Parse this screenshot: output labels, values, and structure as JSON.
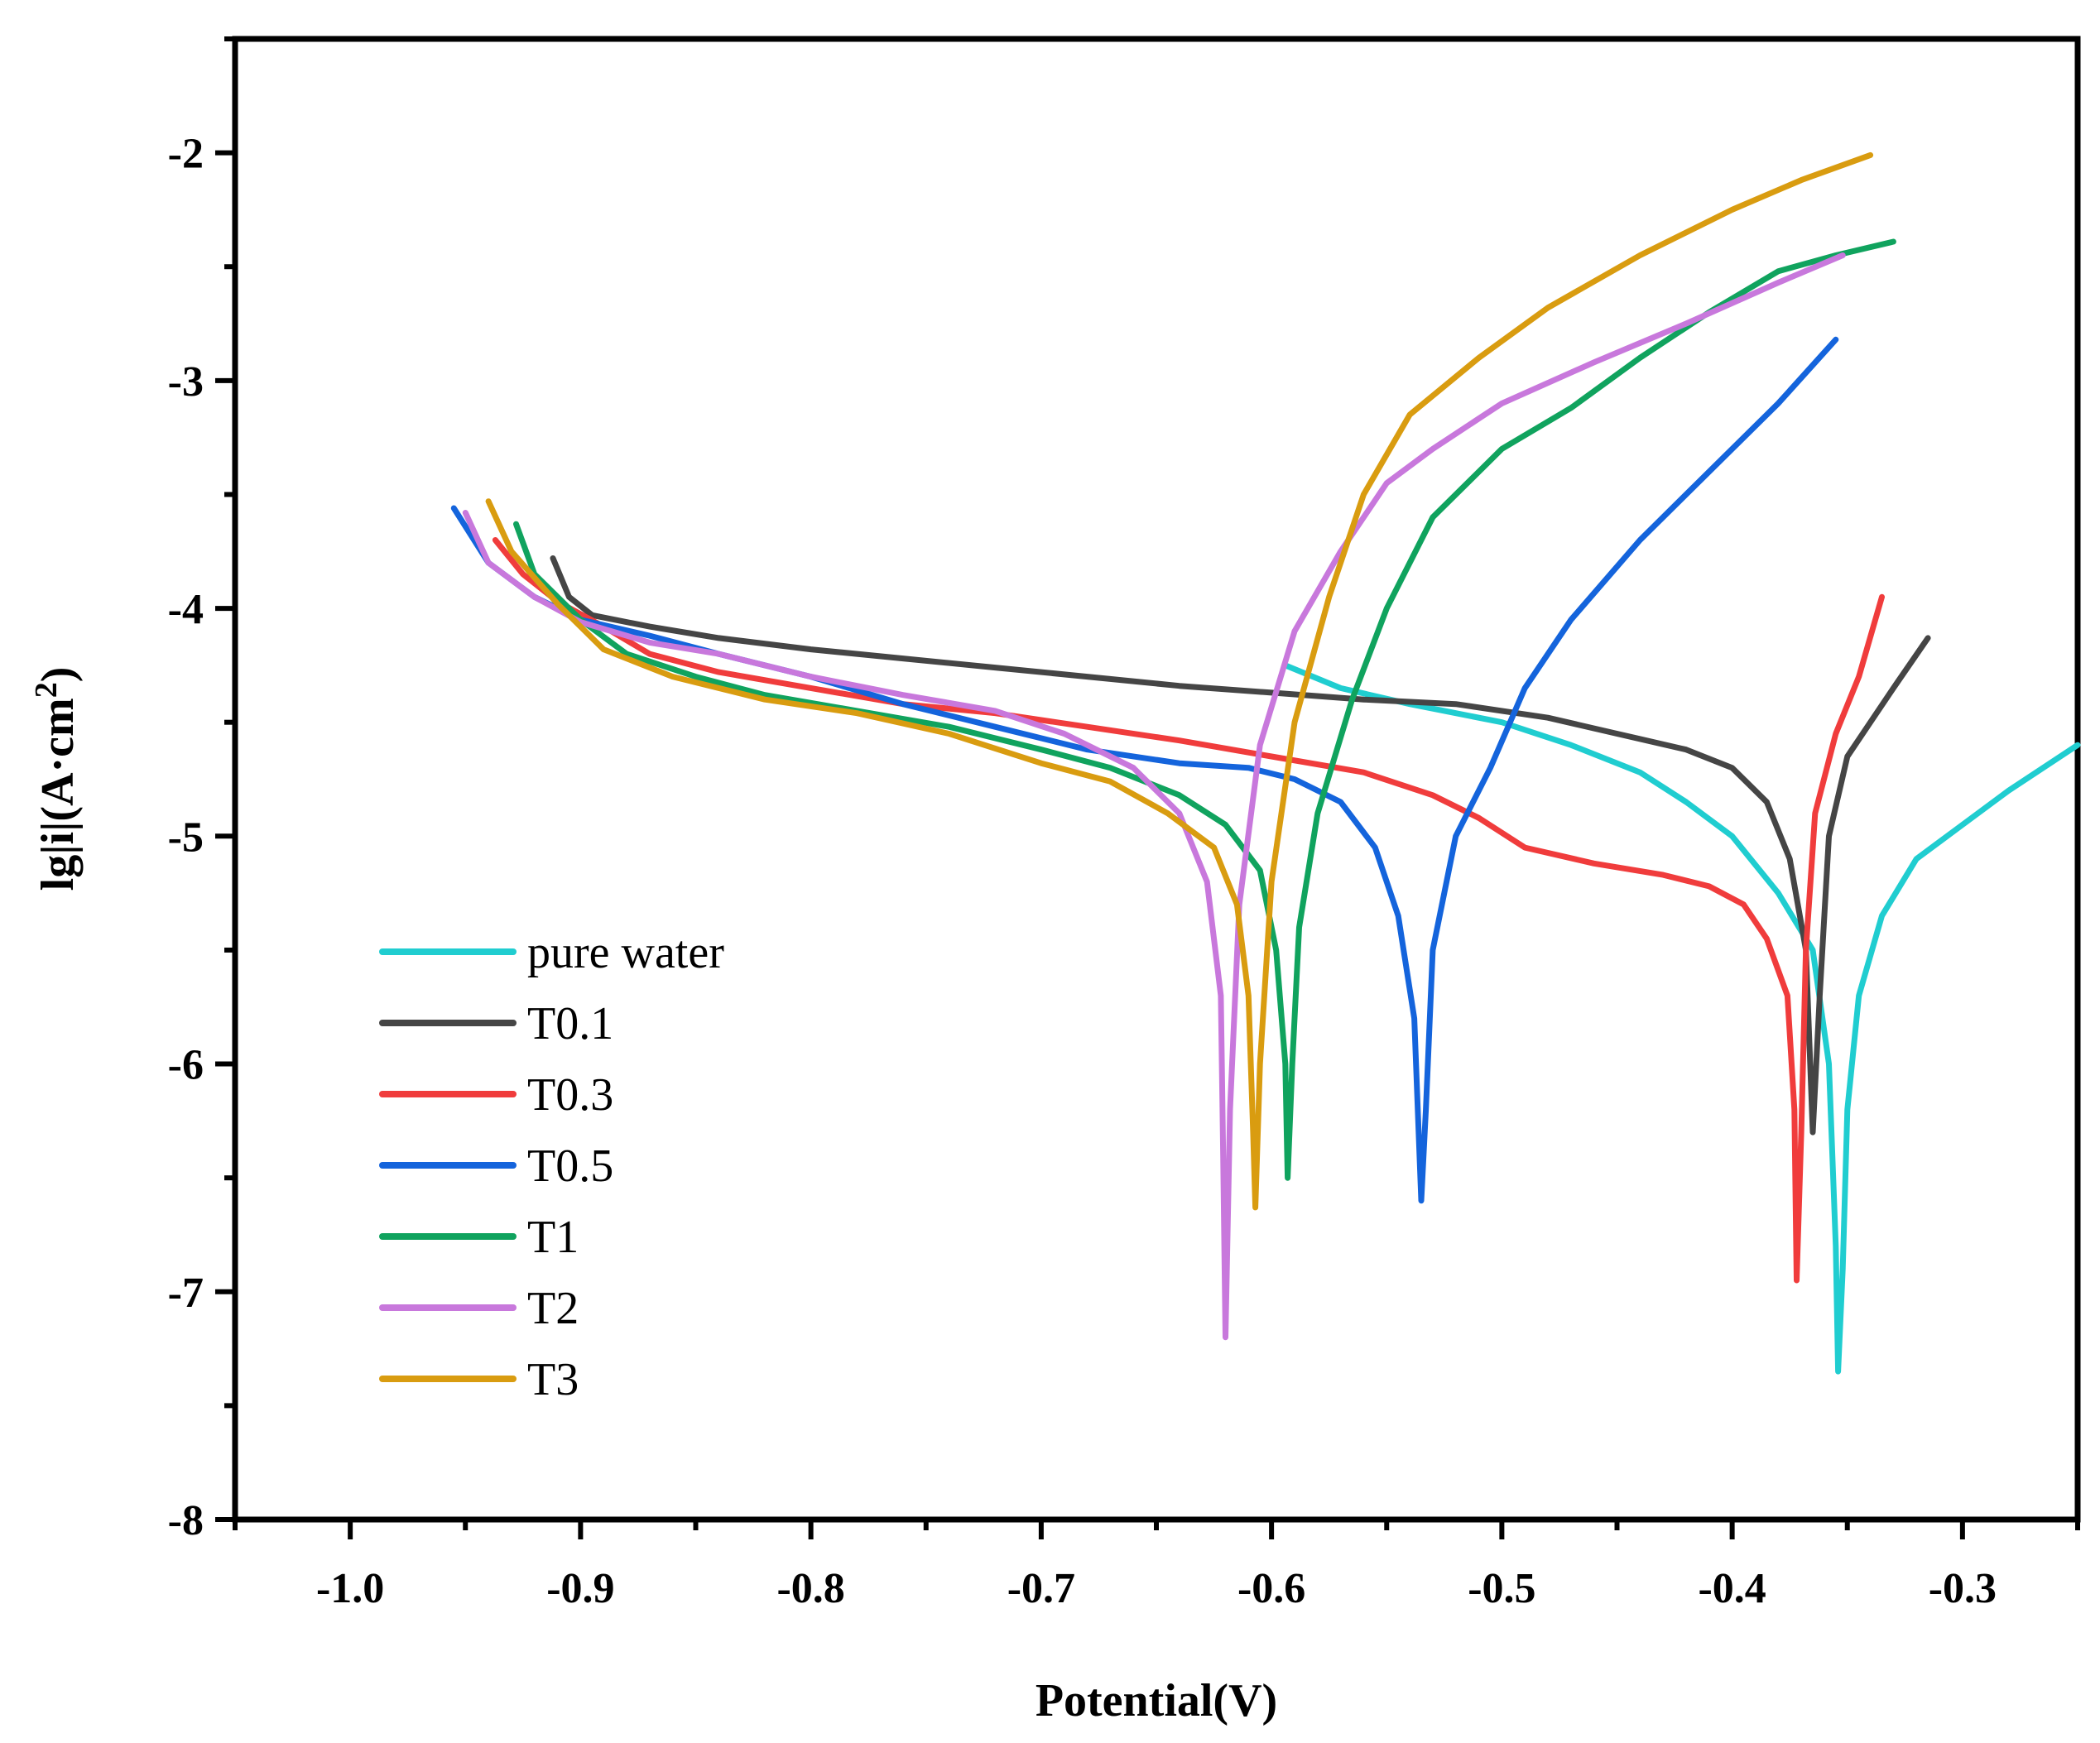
{
  "chart_data": {
    "type": "line",
    "title": "",
    "xlabel": "Potential(V)",
    "ylabel_parts": [
      "lg|i|(A·cm",
      "2",
      ")"
    ],
    "xlim": [
      -1.05,
      -0.25
    ],
    "ylim": [
      -8,
      -1.5
    ],
    "x_ticks": [
      -1.0,
      -0.9,
      -0.8,
      -0.7,
      -0.6,
      -0.5,
      -0.4,
      -0.3
    ],
    "x_tick_labels": [
      "-1.0",
      "-0.9",
      "-0.8",
      "-0.7",
      "-0.6",
      "-0.5",
      "-0.4",
      "-0.3"
    ],
    "y_ticks": [
      -8,
      -7,
      -6,
      -5,
      -4,
      -3,
      -2
    ],
    "y_tick_labels": [
      "-8",
      "-7",
      "-6",
      "-5",
      "-4",
      "-3",
      "-2"
    ],
    "grid": false,
    "legend_position": "bottom-left",
    "series": [
      {
        "name": "pure water",
        "color": "#20cdd0",
        "points": [
          [
            -0.594,
            -4.25
          ],
          [
            -0.57,
            -4.35
          ],
          [
            -0.54,
            -4.42
          ],
          [
            -0.5,
            -4.5
          ],
          [
            -0.47,
            -4.6
          ],
          [
            -0.44,
            -4.72
          ],
          [
            -0.42,
            -4.85
          ],
          [
            -0.4,
            -5.0
          ],
          [
            -0.38,
            -5.25
          ],
          [
            -0.365,
            -5.5
          ],
          [
            -0.358,
            -6.0
          ],
          [
            -0.355,
            -6.8
          ],
          [
            -0.354,
            -7.35
          ],
          [
            -0.352,
            -6.9
          ],
          [
            -0.35,
            -6.2
          ],
          [
            -0.345,
            -5.7
          ],
          [
            -0.335,
            -5.35
          ],
          [
            -0.32,
            -5.1
          ],
          [
            -0.3,
            -4.95
          ],
          [
            -0.28,
            -4.8
          ],
          [
            -0.25,
            -4.6
          ]
        ]
      },
      {
        "name": "T0.1",
        "color": "#454545",
        "points": [
          [
            -0.912,
            -3.78
          ],
          [
            -0.905,
            -3.95
          ],
          [
            -0.895,
            -4.03
          ],
          [
            -0.87,
            -4.08
          ],
          [
            -0.84,
            -4.13
          ],
          [
            -0.8,
            -4.18
          ],
          [
            -0.76,
            -4.22
          ],
          [
            -0.72,
            -4.26
          ],
          [
            -0.68,
            -4.3
          ],
          [
            -0.64,
            -4.34
          ],
          [
            -0.6,
            -4.37
          ],
          [
            -0.56,
            -4.4
          ],
          [
            -0.52,
            -4.42
          ],
          [
            -0.48,
            -4.48
          ],
          [
            -0.45,
            -4.55
          ],
          [
            -0.42,
            -4.62
          ],
          [
            -0.4,
            -4.7
          ],
          [
            -0.385,
            -4.85
          ],
          [
            -0.375,
            -5.1
          ],
          [
            -0.368,
            -5.5
          ],
          [
            -0.365,
            -6.3
          ],
          [
            -0.362,
            -5.7
          ],
          [
            -0.358,
            -5.0
          ],
          [
            -0.35,
            -4.65
          ],
          [
            -0.34,
            -4.5
          ],
          [
            -0.33,
            -4.35
          ],
          [
            -0.315,
            -4.13
          ]
        ]
      },
      {
        "name": "T0.3",
        "color": "#f03c3c",
        "points": [
          [
            -0.937,
            -3.7
          ],
          [
            -0.925,
            -3.85
          ],
          [
            -0.91,
            -3.97
          ],
          [
            -0.89,
            -4.08
          ],
          [
            -0.87,
            -4.2
          ],
          [
            -0.84,
            -4.28
          ],
          [
            -0.8,
            -4.35
          ],
          [
            -0.76,
            -4.42
          ],
          [
            -0.72,
            -4.46
          ],
          [
            -0.68,
            -4.52
          ],
          [
            -0.64,
            -4.58
          ],
          [
            -0.6,
            -4.65
          ],
          [
            -0.56,
            -4.72
          ],
          [
            -0.53,
            -4.82
          ],
          [
            -0.51,
            -4.92
          ],
          [
            -0.49,
            -5.05
          ],
          [
            -0.46,
            -5.12
          ],
          [
            -0.43,
            -5.17
          ],
          [
            -0.41,
            -5.22
          ],
          [
            -0.395,
            -5.3
          ],
          [
            -0.385,
            -5.45
          ],
          [
            -0.376,
            -5.7
          ],
          [
            -0.373,
            -6.2
          ],
          [
            -0.372,
            -6.95
          ],
          [
            -0.37,
            -6.3
          ],
          [
            -0.368,
            -5.5
          ],
          [
            -0.364,
            -4.9
          ],
          [
            -0.355,
            -4.55
          ],
          [
            -0.345,
            -4.3
          ],
          [
            -0.335,
            -3.95
          ]
        ]
      },
      {
        "name": "T0.5",
        "color": "#1464dc",
        "points": [
          [
            -0.955,
            -3.56
          ],
          [
            -0.94,
            -3.8
          ],
          [
            -0.92,
            -3.95
          ],
          [
            -0.9,
            -4.05
          ],
          [
            -0.87,
            -4.12
          ],
          [
            -0.84,
            -4.2
          ],
          [
            -0.8,
            -4.3
          ],
          [
            -0.76,
            -4.42
          ],
          [
            -0.72,
            -4.52
          ],
          [
            -0.68,
            -4.62
          ],
          [
            -0.64,
            -4.68
          ],
          [
            -0.61,
            -4.7
          ],
          [
            -0.59,
            -4.75
          ],
          [
            -0.57,
            -4.85
          ],
          [
            -0.555,
            -5.05
          ],
          [
            -0.545,
            -5.35
          ],
          [
            -0.538,
            -5.8
          ],
          [
            -0.535,
            -6.6
          ],
          [
            -0.533,
            -6.2
          ],
          [
            -0.53,
            -5.5
          ],
          [
            -0.52,
            -5.0
          ],
          [
            -0.505,
            -4.7
          ],
          [
            -0.49,
            -4.35
          ],
          [
            -0.47,
            -4.05
          ],
          [
            -0.44,
            -3.7
          ],
          [
            -0.41,
            -3.4
          ],
          [
            -0.38,
            -3.1
          ],
          [
            -0.355,
            -2.82
          ]
        ]
      },
      {
        "name": "T1",
        "color": "#10a35e",
        "points": [
          [
            -0.928,
            -3.63
          ],
          [
            -0.92,
            -3.85
          ],
          [
            -0.9,
            -4.05
          ],
          [
            -0.88,
            -4.2
          ],
          [
            -0.85,
            -4.3
          ],
          [
            -0.82,
            -4.38
          ],
          [
            -0.78,
            -4.45
          ],
          [
            -0.74,
            -4.52
          ],
          [
            -0.7,
            -4.62
          ],
          [
            -0.67,
            -4.7
          ],
          [
            -0.64,
            -4.82
          ],
          [
            -0.62,
            -4.95
          ],
          [
            -0.605,
            -5.15
          ],
          [
            -0.598,
            -5.5
          ],
          [
            -0.594,
            -6.0
          ],
          [
            -0.593,
            -6.5
          ],
          [
            -0.591,
            -6.0
          ],
          [
            -0.588,
            -5.4
          ],
          [
            -0.58,
            -4.9
          ],
          [
            -0.565,
            -4.4
          ],
          [
            -0.55,
            -4.0
          ],
          [
            -0.53,
            -3.6
          ],
          [
            -0.5,
            -3.3
          ],
          [
            -0.47,
            -3.12
          ],
          [
            -0.44,
            -2.9
          ],
          [
            -0.41,
            -2.7
          ],
          [
            -0.38,
            -2.52
          ],
          [
            -0.355,
            -2.45
          ],
          [
            -0.33,
            -2.39
          ]
        ]
      },
      {
        "name": "T2",
        "color": "#c878dc",
        "points": [
          [
            -0.95,
            -3.58
          ],
          [
            -0.94,
            -3.8
          ],
          [
            -0.92,
            -3.95
          ],
          [
            -0.9,
            -4.06
          ],
          [
            -0.87,
            -4.15
          ],
          [
            -0.84,
            -4.2
          ],
          [
            -0.8,
            -4.3
          ],
          [
            -0.76,
            -4.38
          ],
          [
            -0.72,
            -4.45
          ],
          [
            -0.69,
            -4.55
          ],
          [
            -0.66,
            -4.7
          ],
          [
            -0.64,
            -4.9
          ],
          [
            -0.628,
            -5.2
          ],
          [
            -0.622,
            -5.7
          ],
          [
            -0.621,
            -6.4
          ],
          [
            -0.62,
            -7.2
          ],
          [
            -0.618,
            -6.2
          ],
          [
            -0.614,
            -5.3
          ],
          [
            -0.605,
            -4.6
          ],
          [
            -0.59,
            -4.1
          ],
          [
            -0.57,
            -3.75
          ],
          [
            -0.55,
            -3.45
          ],
          [
            -0.53,
            -3.3
          ],
          [
            -0.5,
            -3.1
          ],
          [
            -0.46,
            -2.92
          ],
          [
            -0.42,
            -2.75
          ],
          [
            -0.38,
            -2.57
          ],
          [
            -0.352,
            -2.45
          ]
        ]
      },
      {
        "name": "T3",
        "color": "#d99c10",
        "points": [
          [
            -0.94,
            -3.53
          ],
          [
            -0.93,
            -3.75
          ],
          [
            -0.91,
            -3.98
          ],
          [
            -0.89,
            -4.18
          ],
          [
            -0.86,
            -4.3
          ],
          [
            -0.82,
            -4.4
          ],
          [
            -0.78,
            -4.46
          ],
          [
            -0.74,
            -4.55
          ],
          [
            -0.7,
            -4.68
          ],
          [
            -0.67,
            -4.76
          ],
          [
            -0.645,
            -4.9
          ],
          [
            -0.625,
            -5.05
          ],
          [
            -0.615,
            -5.3
          ],
          [
            -0.61,
            -5.7
          ],
          [
            -0.608,
            -6.3
          ],
          [
            -0.607,
            -6.63
          ],
          [
            -0.605,
            -6.0
          ],
          [
            -0.6,
            -5.2
          ],
          [
            -0.59,
            -4.5
          ],
          [
            -0.575,
            -3.95
          ],
          [
            -0.56,
            -3.5
          ],
          [
            -0.54,
            -3.15
          ],
          [
            -0.51,
            -2.9
          ],
          [
            -0.48,
            -2.68
          ],
          [
            -0.44,
            -2.45
          ],
          [
            -0.4,
            -2.25
          ],
          [
            -0.37,
            -2.12
          ],
          [
            -0.34,
            -2.01
          ]
        ]
      }
    ]
  }
}
